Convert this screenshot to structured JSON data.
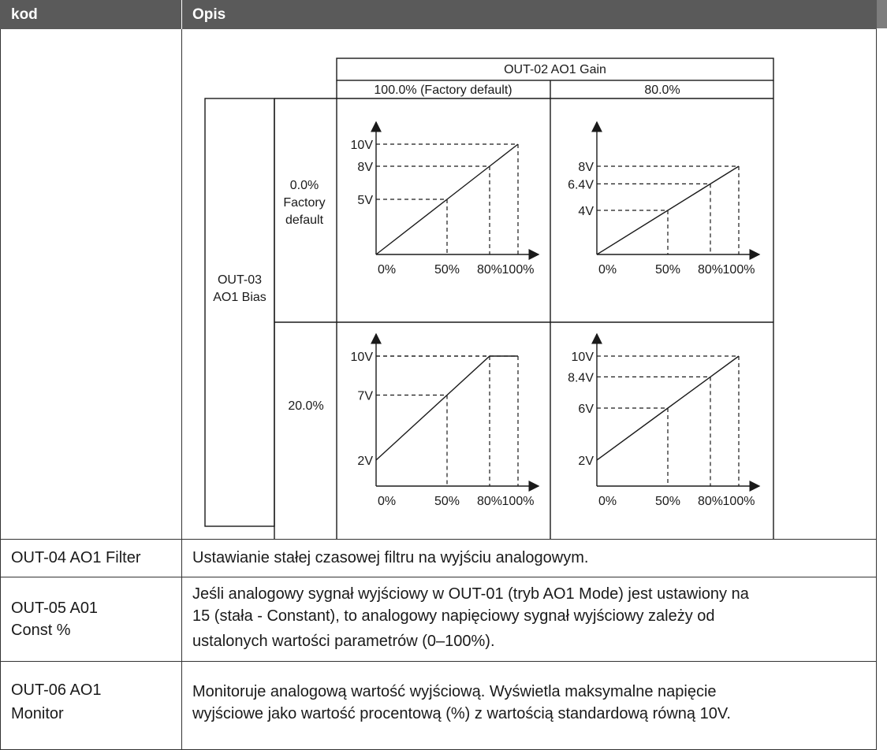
{
  "header": {
    "col_code": "kod",
    "col_desc": "Opis"
  },
  "figure": {
    "gain_title": "OUT-02 AO1 Gain",
    "gain_100": "100.0% (Factory default)",
    "gain_80": "80.0%",
    "bias_label_1": "OUT-03",
    "bias_label_2": "AO1 Bias",
    "bias_0_line1": "0.0%",
    "bias_0_line2": "Factory",
    "bias_0_line3": "default",
    "bias_20": "20.0%",
    "x_ticks": [
      "0%",
      "50%",
      "80%",
      "100%"
    ],
    "chart_data": [
      {
        "type": "line",
        "panel": "gain 100%, bias 0%",
        "x": [
          0,
          50,
          80,
          100
        ],
        "y": [
          0,
          5,
          8,
          10
        ],
        "y_labels": [
          "10V",
          "8V",
          "5V"
        ]
      },
      {
        "type": "line",
        "panel": "gain 80%, bias 0%",
        "x": [
          0,
          50,
          80,
          100
        ],
        "y": [
          0,
          4,
          6.4,
          8
        ],
        "y_labels": [
          "8V",
          "6.4V",
          "4V"
        ]
      },
      {
        "type": "line",
        "panel": "gain 100%, bias 20%",
        "x": [
          0,
          50,
          80,
          100
        ],
        "y": [
          2,
          7,
          10,
          10
        ],
        "y_labels": [
          "10V",
          "7V",
          "2V"
        ]
      },
      {
        "type": "line",
        "panel": "gain 80%, bias 20%",
        "x": [
          0,
          50,
          80,
          100
        ],
        "y": [
          2,
          6,
          8.4,
          10
        ],
        "y_labels": [
          "10V",
          "8.4V",
          "6V",
          "2V"
        ]
      }
    ]
  },
  "rows": [
    {
      "code": "OUT-04 AO1 Filter",
      "desc": [
        "Ustawianie stałej czasowej filtru na wyjściu analogowym."
      ]
    },
    {
      "code_lines": [
        "OUT-05 A01",
        "Const %"
      ],
      "desc": [
        "Jeśli analogowy sygnał wyjściowy w OUT-01 (tryb AO1 Mode) jest ustawiony na",
        "15 (stała - Constant), to analogowy napięciowy sygnał wyjściowy zależy od",
        "ustalonych wartości parametrów (0–100%)."
      ]
    },
    {
      "code_lines": [
        "OUT-06 AO1",
        "Monitor"
      ],
      "desc": [
        "Monitoruje analogową wartość wyjściową. Wyświetla maksymalne napięcie",
        "wyjściowe jako wartość procentową (%) z wartością standardową równą 10V."
      ]
    }
  ]
}
